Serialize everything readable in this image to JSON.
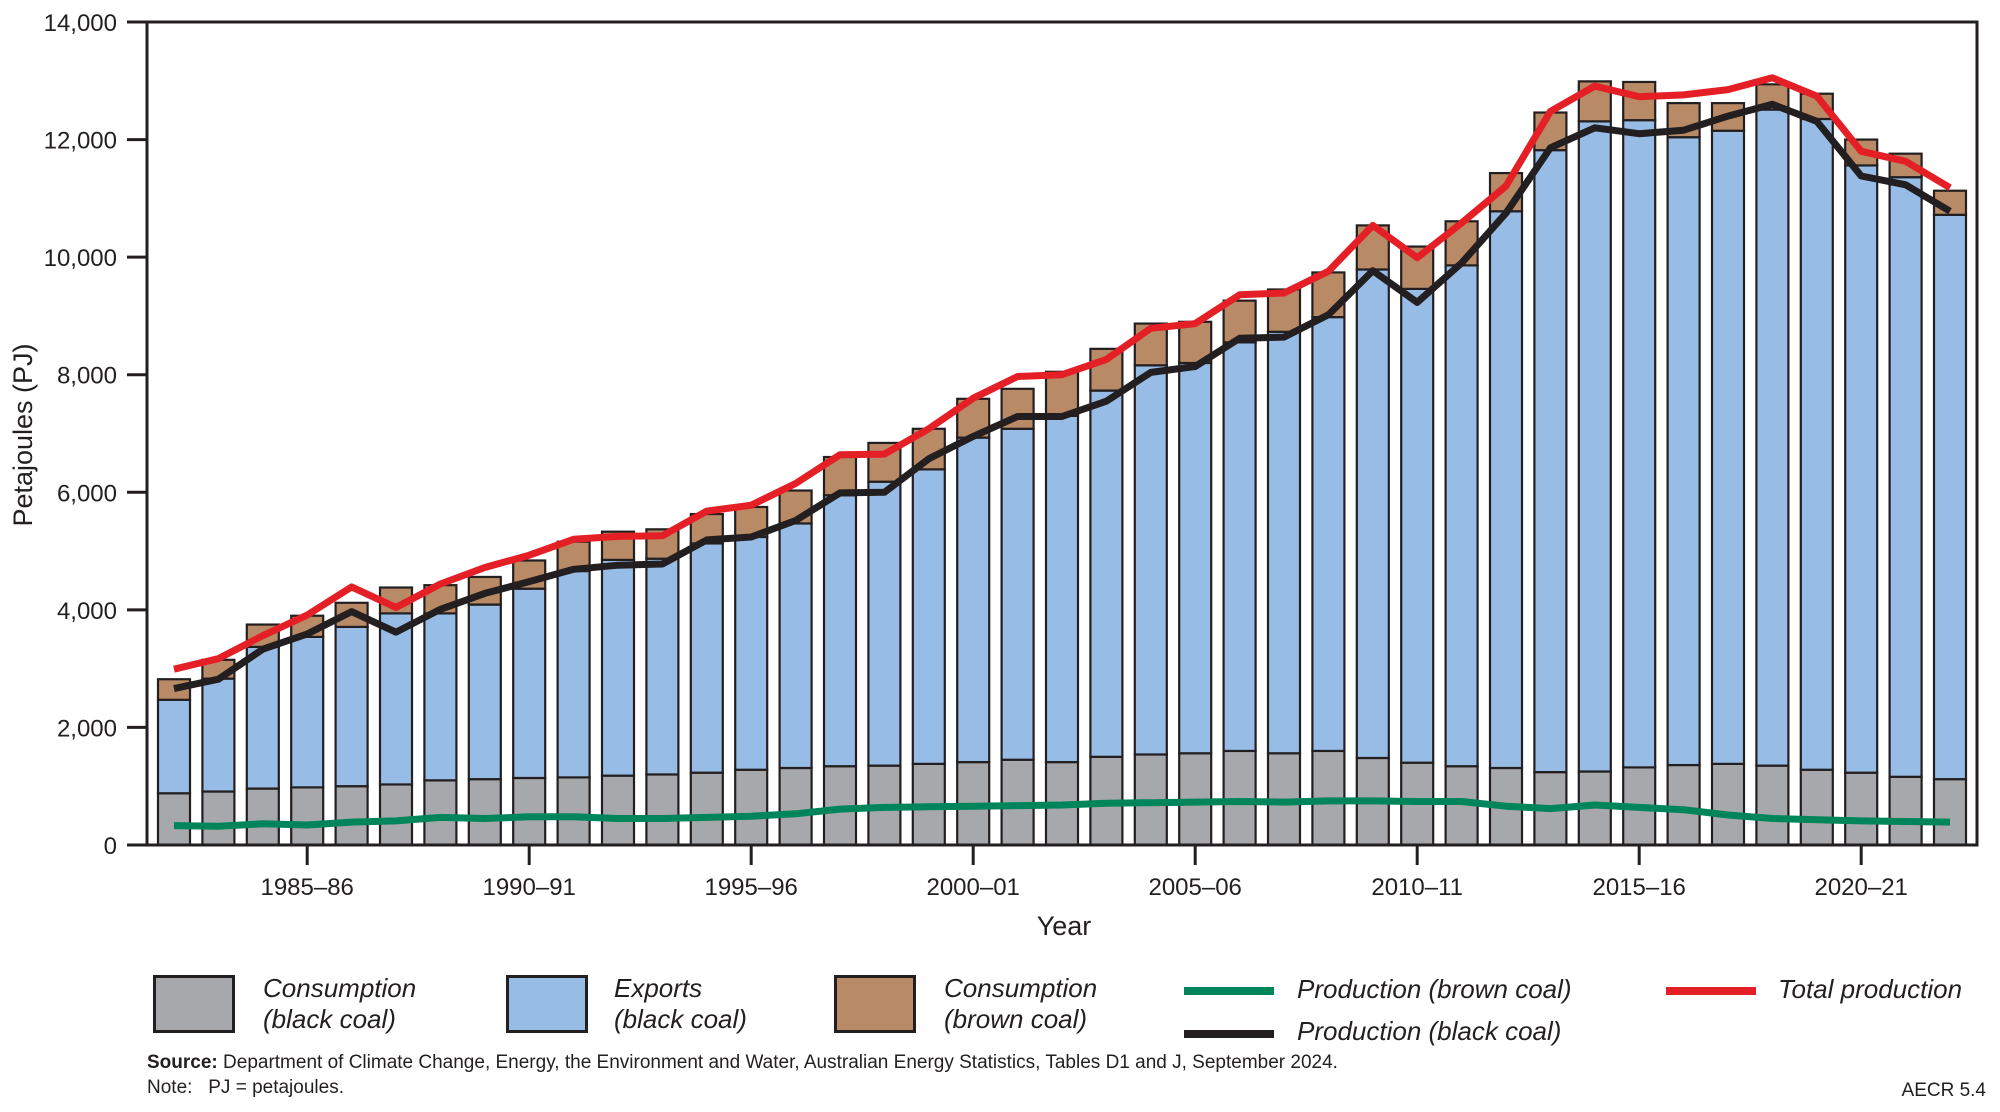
{
  "chart_data": {
    "type": "bar",
    "subtype": "stacked-bar-with-lines",
    "title": "",
    "xlabel": "Year",
    "ylabel": "Petajoules (PJ)",
    "ylim": [
      0,
      14000
    ],
    "yticks": [
      0,
      2000,
      4000,
      6000,
      8000,
      10000,
      12000,
      14000
    ],
    "ytick_labels": [
      "0",
      "2,000",
      "4,000",
      "6,000",
      "8,000",
      "10,000",
      "12,000",
      "14,000"
    ],
    "xtick_labels": [
      {
        "category": "1985–86",
        "label": "1985–86"
      },
      {
        "category": "1990–91",
        "label": "1990–91"
      },
      {
        "category": "1995–96",
        "label": "1995–96"
      },
      {
        "category": "2000–01",
        "label": "2000–01"
      },
      {
        "category": "2005–06",
        "label": "2005–06"
      },
      {
        "category": "2010–11",
        "label": "2010–11"
      },
      {
        "category": "2015–16",
        "label": "2015–16"
      },
      {
        "category": "2020–21",
        "label": "2020–21"
      }
    ],
    "grid": false,
    "legend_position": "bottom",
    "categories": [
      "1982–83",
      "1983–84",
      "1984–85",
      "1985–86",
      "1986–87",
      "1987–88",
      "1988–89",
      "1989–90",
      "1990–91",
      "1991–92",
      "1992–93",
      "1993–94",
      "1994–95",
      "1995–96",
      "1996–97",
      "1997–98",
      "1998–99",
      "1999–2000",
      "2000–01",
      "2001–02",
      "2002–03",
      "2003–04",
      "2004–05",
      "2005–06",
      "2006–07",
      "2007–08",
      "2008–09",
      "2009–10",
      "2010–11",
      "2011–12",
      "2012–13",
      "2013–14",
      "2014–15",
      "2015–16",
      "2016–17",
      "2017–18",
      "2018–19",
      "2019–20",
      "2020–21",
      "2021–22",
      "2022–23"
    ],
    "bar_series": [
      {
        "name": "Consumption (black coal)",
        "legend_label": [
          "Consumption",
          "(black coal)"
        ],
        "color": "#a7a8ab",
        "values": [
          880,
          910,
          960,
          980,
          1000,
          1030,
          1100,
          1120,
          1140,
          1150,
          1180,
          1200,
          1230,
          1280,
          1310,
          1340,
          1350,
          1380,
          1410,
          1450,
          1410,
          1500,
          1540,
          1560,
          1600,
          1560,
          1600,
          1480,
          1400,
          1340,
          1310,
          1240,
          1250,
          1320,
          1360,
          1380,
          1350,
          1280,
          1230,
          1160,
          1120
        ]
      },
      {
        "name": "Exports (black coal)",
        "legend_label": [
          "Exports",
          "(black coal)"
        ],
        "color": "#97bde6",
        "values": [
          1590,
          1920,
          2410,
          2560,
          2710,
          2910,
          2840,
          2970,
          3220,
          3510,
          3670,
          3670,
          3900,
          3960,
          4160,
          4610,
          4830,
          5010,
          5520,
          5630,
          5890,
          6230,
          6620,
          6640,
          6950,
          7170,
          7380,
          8310,
          8060,
          8520,
          9470,
          10580,
          11060,
          11010,
          10680,
          10770,
          11160,
          11070,
          10330,
          10200,
          9600
        ]
      },
      {
        "name": "Consumption (brown coal)",
        "legend_label": [
          "Consumption",
          "(brown coal)"
        ],
        "color": "#b98a66",
        "values": [
          350,
          320,
          380,
          360,
          410,
          440,
          480,
          470,
          480,
          500,
          480,
          500,
          500,
          510,
          560,
          650,
          660,
          690,
          660,
          680,
          750,
          710,
          710,
          700,
          710,
          720,
          760,
          750,
          720,
          750,
          650,
          640,
          680,
          650,
          580,
          470,
          430,
          430,
          440,
          400,
          410
        ]
      }
    ],
    "line_series": [
      {
        "name": "Production (brown coal)",
        "color": "#00845a",
        "values": [
          330,
          320,
          360,
          340,
          390,
          410,
          470,
          450,
          480,
          480,
          450,
          450,
          470,
          490,
          530,
          610,
          640,
          650,
          660,
          670,
          680,
          710,
          720,
          730,
          740,
          730,
          750,
          750,
          740,
          740,
          660,
          620,
          680,
          640,
          600,
          510,
          450,
          430,
          410,
          400,
          390
        ]
      },
      {
        "name": "Production (black coal)",
        "color": "#231f20",
        "values": [
          2660,
          2820,
          3330,
          3590,
          3970,
          3620,
          4010,
          4280,
          4480,
          4690,
          4760,
          4780,
          5190,
          5240,
          5520,
          5990,
          6000,
          6570,
          6950,
          7290,
          7290,
          7550,
          8040,
          8140,
          8620,
          8640,
          9020,
          9770,
          9230,
          9900,
          10750,
          11860,
          12200,
          12100,
          12160,
          12400,
          12600,
          12310,
          11380,
          11230,
          10780
        ]
      },
      {
        "name": "Total production",
        "color": "#e41f26",
        "values": [
          2990,
          3170,
          3560,
          3910,
          4390,
          4040,
          4440,
          4720,
          4930,
          5200,
          5250,
          5260,
          5680,
          5780,
          6150,
          6640,
          6650,
          7080,
          7600,
          7970,
          8000,
          8260,
          8790,
          8870,
          9360,
          9390,
          9760,
          10540,
          9990,
          10580,
          11210,
          12480,
          12910,
          12730,
          12760,
          12850,
          13050,
          12740,
          11800,
          11630,
          11180
        ]
      }
    ]
  },
  "legend": {
    "items": [
      {
        "label_line1": "Consumption",
        "label_line2": "(black coal)"
      },
      {
        "label_line1": "Exports",
        "label_line2": "(black coal)"
      },
      {
        "label_line1": "Consumption",
        "label_line2": "(brown coal)"
      },
      {
        "label": "Production (brown coal)"
      },
      {
        "label": "Production (black coal)"
      },
      {
        "label": "Total production"
      }
    ]
  },
  "footer": {
    "source_label": "Source:",
    "source_text": " Department of Climate Change, Energy, the Environment and Water, Australian Energy Statistics, Tables D1 and J, September 2024.",
    "note": "Note:   PJ = petajoules.",
    "figure_id": "AECR 5.4"
  }
}
